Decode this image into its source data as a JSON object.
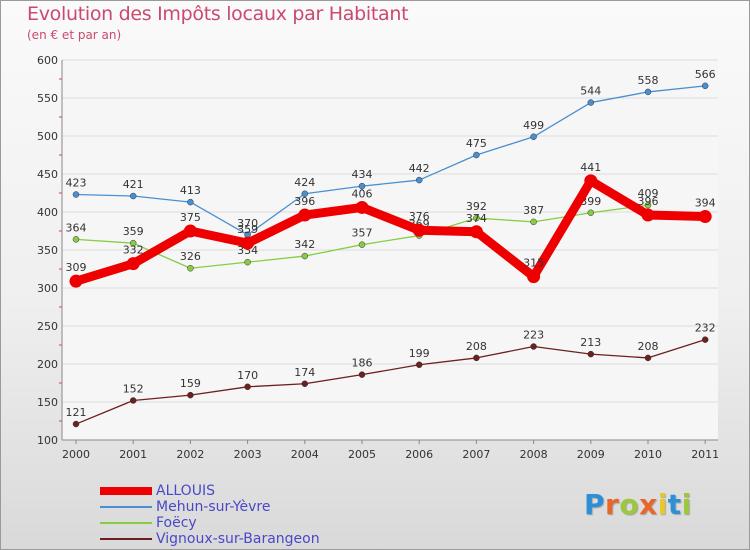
{
  "title": "Evolution des Impôts locaux par Habitant",
  "subtitle": "(en € et par an)",
  "logo": {
    "letters": [
      "P",
      "r",
      "o",
      "x",
      "i",
      "t",
      "i"
    ],
    "colors": [
      "#2d8fd5",
      "#e8662a",
      "#9bc83c",
      "#e8662a",
      "#e8c82a",
      "#2d8fd5",
      "#9bc83c"
    ]
  },
  "chart_data": {
    "type": "line",
    "title": "Evolution des Impôts locaux par Habitant",
    "subtitle": "(en € et par an)",
    "xlabel": "",
    "ylabel": "",
    "x": [
      "2000",
      "2001",
      "2002",
      "2003",
      "2004",
      "2005",
      "2006",
      "2007",
      "2008",
      "2009",
      "2010",
      "2011"
    ],
    "ylim": [
      100,
      600
    ],
    "yticks": [
      "100",
      "150",
      "200",
      "250",
      "300",
      "350",
      "400",
      "450",
      "500",
      "550",
      "600"
    ],
    "grid": "horizontal",
    "legend": "bottom-left",
    "series": [
      {
        "name": "ALLOUIS",
        "values": [
          309,
          332,
          375,
          359,
          396,
          406,
          376,
          374,
          315,
          441,
          396,
          394
        ],
        "labels": [
          "309",
          "332",
          "375",
          "359",
          "396",
          "406",
          "376",
          "374",
          "315",
          "441",
          "396",
          "394"
        ],
        "color": "#ee0000"
      },
      {
        "name": "Mehun-sur-Yèvre",
        "values": [
          423,
          421,
          413,
          370,
          424,
          434,
          442,
          475,
          499,
          544,
          558,
          566
        ],
        "labels": [
          "423",
          "421",
          "413",
          "370",
          "424",
          "434",
          "442",
          "475",
          "499",
          "544",
          "558",
          "566"
        ],
        "color": "#4a8fd0"
      },
      {
        "name": "Foëcy",
        "values": [
          364,
          359,
          326,
          334,
          342,
          357,
          369,
          392,
          387,
          399,
          409,
          null
        ],
        "labels": [
          "364",
          "359",
          "326",
          "334",
          "342",
          "357",
          "369",
          "392",
          "387",
          "399",
          "409",
          ""
        ],
        "color": "#88cc44"
      },
      {
        "name": "Vignoux-sur-Barangeon",
        "values": [
          121,
          152,
          159,
          170,
          174,
          186,
          199,
          208,
          223,
          213,
          208,
          232
        ],
        "labels": [
          "121",
          "152",
          "159",
          "170",
          "174",
          "186",
          "199",
          "208",
          "223",
          "213",
          "208",
          "232"
        ],
        "color": "#6e1f1f"
      }
    ]
  }
}
